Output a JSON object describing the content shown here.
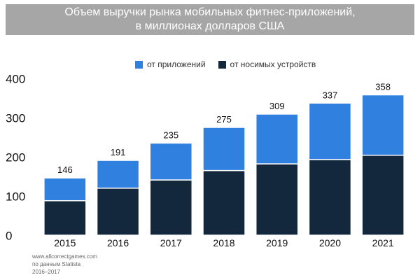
{
  "title_line1": "Объем выручки рынка мобильных фитнес-приложений,",
  "title_line2": "в миллионах долларов США",
  "source_lines": [
    "www.allcorrectgames.com",
    "по данным Statista",
    "2016–2017"
  ],
  "colors": {
    "apps": "#2f80df",
    "wearables": "#13273d",
    "title_bg": "#a6a6a6"
  },
  "chart_data": {
    "type": "bar",
    "stacked": true,
    "categories": [
      "2015",
      "2016",
      "2017",
      "2018",
      "2019",
      "2020",
      "2021"
    ],
    "series": [
      {
        "name": "от носимых устройств",
        "values": [
          88,
          120,
          141,
          165,
          182,
          193,
          204
        ]
      },
      {
        "name": "от приложений",
        "values": [
          58,
          71,
          94,
          110,
          127,
          144,
          154
        ]
      }
    ],
    "totals": [
      146,
      191,
      235,
      275,
      309,
      337,
      358
    ],
    "yticks": [
      0,
      100,
      200,
      300,
      400
    ],
    "ylim": [
      0,
      400
    ],
    "grid": false,
    "legend_position": "top"
  }
}
